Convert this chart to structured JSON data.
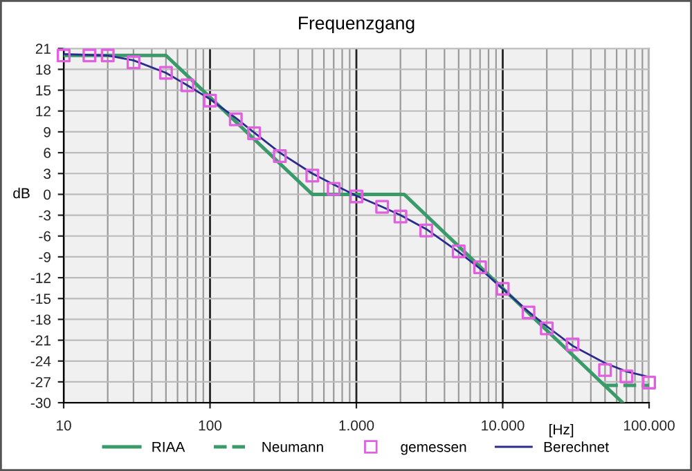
{
  "chart_data": {
    "type": "line",
    "title": "Frequenzgang",
    "xlabel": "[Hz]",
    "ylabel": "dB",
    "log": "x",
    "xlim": [
      10,
      100000
    ],
    "xticks": [
      10,
      100,
      {
        "value": 1000,
        "label": "1.000"
      },
      {
        "value": 10000,
        "label": "10.000"
      },
      {
        "value": 100000,
        "label": "100.000"
      }
    ],
    "ylim": [
      -30,
      21
    ],
    "yticks": [
      -30,
      -27,
      -24,
      -21,
      -18,
      -15,
      -12,
      -9,
      -6,
      -3,
      0,
      3,
      6,
      9,
      12,
      15,
      18,
      21
    ],
    "grid": true,
    "legend": "bottom",
    "series": [
      {
        "name": "RIAA",
        "color": "#3a9a6a",
        "line_style": "solid",
        "marker": "none",
        "x": [
          10,
          50,
          500,
          2120,
          66000
        ],
        "values": [
          20,
          20,
          0,
          0,
          -30
        ]
      },
      {
        "name": "Neumann",
        "color": "#3a9a6a",
        "line_style": "dashed",
        "marker": "none",
        "x": [
          50000,
          100000
        ],
        "values": [
          -27.5,
          -27.5
        ]
      },
      {
        "name": "gemessen",
        "type": "scatter",
        "color": "#e060e0",
        "marker": "square",
        "x": [
          10,
          15,
          20,
          30,
          50,
          70,
          100,
          150,
          200,
          300,
          500,
          700,
          1000,
          1500,
          2000,
          3000,
          5000,
          7000,
          10000,
          15000,
          20000,
          30000,
          50000,
          70000,
          100000
        ],
        "values": [
          20,
          20,
          20,
          19,
          17.5,
          15.7,
          13.5,
          10.8,
          8.8,
          5.5,
          2.7,
          0.8,
          -0.3,
          -1.8,
          -3.2,
          -5.2,
          -8.2,
          -10.5,
          -13.6,
          -17,
          -19.3,
          -21.6,
          -25.3,
          -26.2,
          -27.1
        ]
      },
      {
        "name": "Berechnet",
        "color": "#2b2b8f",
        "line_style": "solid",
        "marker": "none",
        "x": [
          10,
          20,
          30,
          50,
          70,
          100,
          150,
          200,
          300,
          500,
          700,
          1000,
          1500,
          2000,
          3000,
          5000,
          7000,
          10000,
          15000,
          20000,
          30000,
          50000,
          70000,
          100000
        ],
        "values": [
          20.2,
          20,
          19.3,
          17.5,
          15.7,
          13.7,
          11,
          8.9,
          6,
          3,
          1.4,
          -0.2,
          -1.8,
          -3,
          -5,
          -8.3,
          -10.7,
          -13.6,
          -16.9,
          -19,
          -21.8,
          -24.3,
          -25.5,
          -26.3
        ]
      }
    ]
  }
}
